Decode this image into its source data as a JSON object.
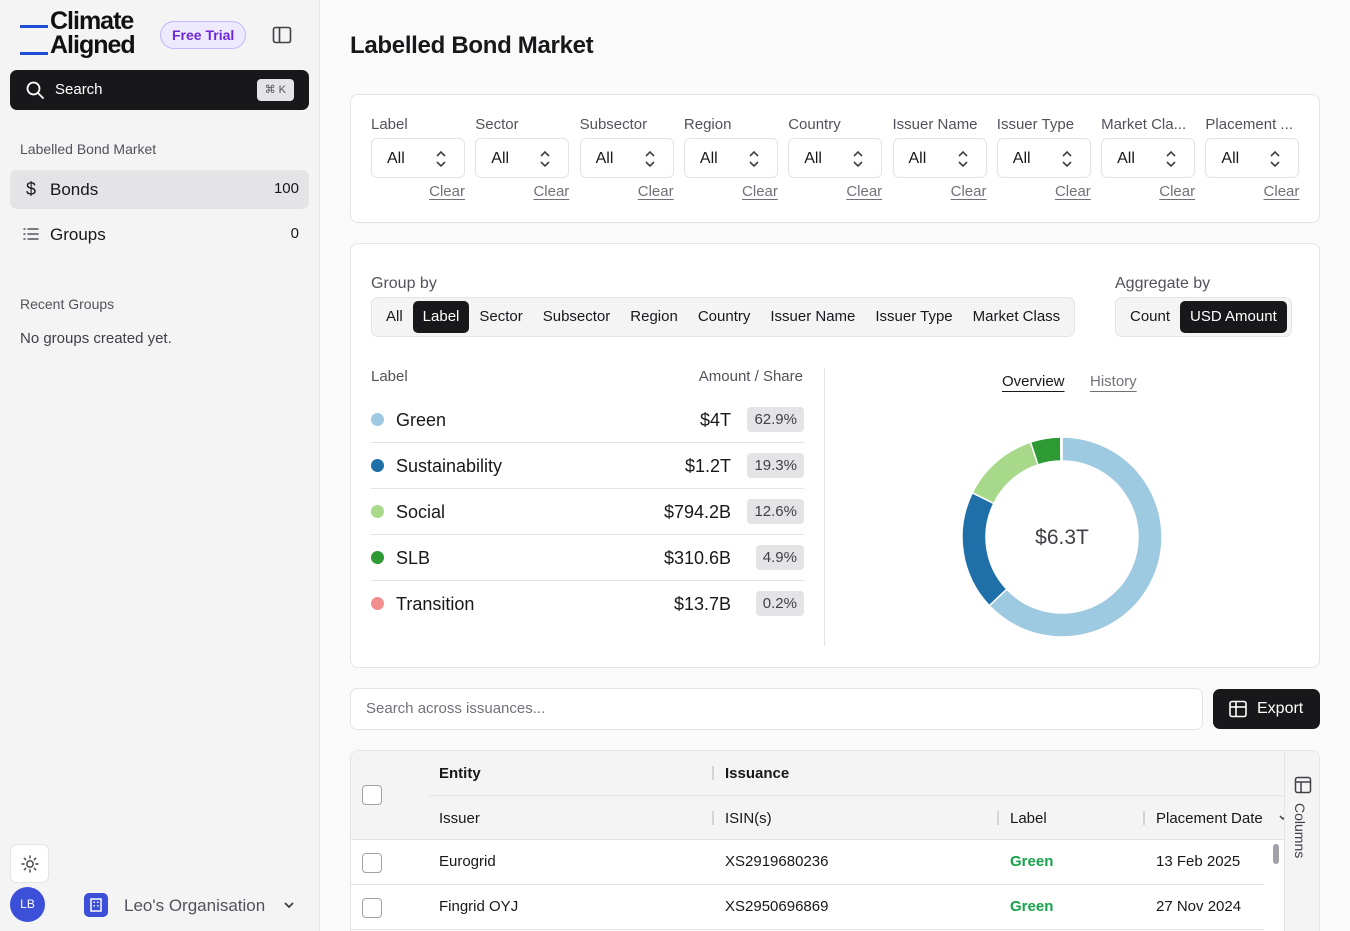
{
  "brand": {
    "line1": "Climate",
    "line2": "Aligned",
    "trial_badge": "Free Trial",
    "accent": "#1d4ed8"
  },
  "sidebar": {
    "search_label": "Search",
    "search_shortcut": "⌘ K",
    "section_title": "Labelled Bond Market",
    "items": [
      {
        "label": "Bonds",
        "count": "100",
        "icon": "dollar-icon",
        "active": true
      },
      {
        "label": "Groups",
        "count": "0",
        "icon": "list-icon",
        "active": false
      }
    ],
    "recent_title": "Recent Groups",
    "recent_empty": "No groups created yet.",
    "user_initials": "LB",
    "org_name": "Leo's Organisation"
  },
  "page_title": "Labelled Bond Market",
  "filters": [
    {
      "label": "Label",
      "value": "All",
      "clear": "Clear"
    },
    {
      "label": "Sector",
      "value": "All",
      "clear": "Clear"
    },
    {
      "label": "Subsector",
      "value": "All",
      "clear": "Clear"
    },
    {
      "label": "Region",
      "value": "All",
      "clear": "Clear"
    },
    {
      "label": "Country",
      "value": "All",
      "clear": "Clear"
    },
    {
      "label": "Issuer Name",
      "value": "All",
      "clear": "Clear"
    },
    {
      "label": "Issuer Type",
      "value": "All",
      "clear": "Clear"
    },
    {
      "label": "Market Cla...",
      "value": "All",
      "clear": "Clear"
    },
    {
      "label": "Placement ...",
      "value": "All",
      "clear": "Clear"
    }
  ],
  "group_by": {
    "title": "Group by",
    "options": [
      "All",
      "Label",
      "Sector",
      "Subsector",
      "Region",
      "Country",
      "Issuer Name",
      "Issuer Type",
      "Market Class"
    ],
    "selected": "Label"
  },
  "aggregate_by": {
    "title": "Aggregate by",
    "options": [
      "Count",
      "USD Amount"
    ],
    "selected": "USD Amount"
  },
  "breakdown": {
    "col_label": "Label",
    "col_amount": "Amount / Share",
    "rows": [
      {
        "name": "Green",
        "amount": "$4T",
        "share": "62.9%",
        "color": "#9ecae1"
      },
      {
        "name": "Sustainability",
        "amount": "$1.2T",
        "share": "19.3%",
        "color": "#1f6fa8"
      },
      {
        "name": "Social",
        "amount": "$794.2B",
        "share": "12.6%",
        "color": "#a8d98a"
      },
      {
        "name": "SLB",
        "amount": "$310.6B",
        "share": "4.9%",
        "color": "#2e9a33"
      },
      {
        "name": "Transition",
        "amount": "$13.7B",
        "share": "0.2%",
        "color": "#f28e8e"
      }
    ]
  },
  "chart_tabs": {
    "overview": "Overview",
    "history": "History",
    "selected": "Overview"
  },
  "chart_data": {
    "type": "pie",
    "center_label": "$6.3T",
    "categories": [
      "Green",
      "Sustainability",
      "Social",
      "SLB",
      "Transition"
    ],
    "values": [
      62.9,
      19.3,
      12.6,
      4.9,
      0.2
    ],
    "colors": [
      "#9ecae1",
      "#1f6fa8",
      "#a8d98a",
      "#2e9a33",
      "#f28e8e"
    ]
  },
  "issuance_search": {
    "placeholder": "Search across issuances..."
  },
  "export_label": "Export",
  "table": {
    "group_headers": [
      "Entity",
      "Issuance"
    ],
    "columns": [
      "Issuer",
      "ISIN(s)",
      "Label",
      "Placement Date"
    ],
    "rows": [
      {
        "issuer": "Eurogrid",
        "isin": "XS2919680236",
        "label": "Green",
        "date": "13 Feb 2025"
      },
      {
        "issuer": "Fingrid OYJ",
        "isin": "XS2950696869",
        "label": "Green",
        "date": "27 Nov 2024"
      }
    ],
    "columns_panel_label": "Columns"
  }
}
